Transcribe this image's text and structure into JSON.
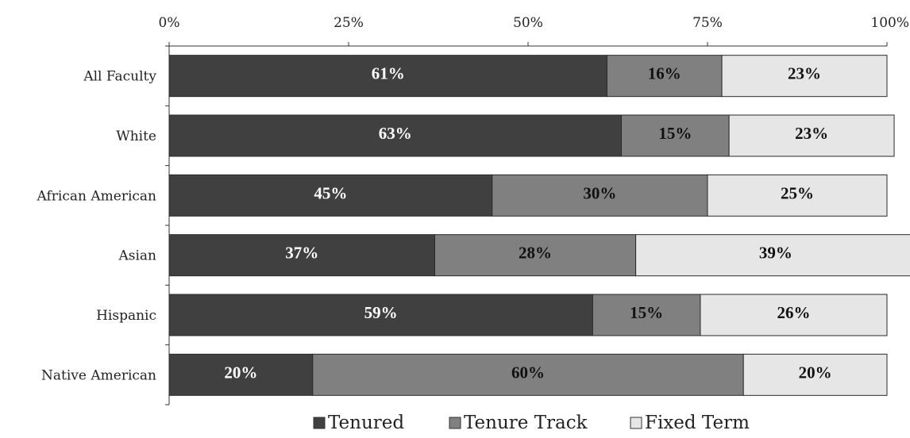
{
  "chart_data": {
    "type": "bar",
    "orientation": "horizontal",
    "stacked": true,
    "title": "",
    "xlabel": "",
    "ylabel": "",
    "xlim": [
      0,
      100
    ],
    "x_ticks": [
      "0%",
      "25%",
      "50%",
      "75%",
      "100%"
    ],
    "categories": [
      "All Faculty",
      "White",
      "African American",
      "Asian",
      "Hispanic",
      "Native American"
    ],
    "series": [
      {
        "name": "Tenured",
        "color": "#404040",
        "label_color": "#ffffff",
        "label_bold": true,
        "values": [
          61,
          63,
          45,
          37,
          59,
          20
        ],
        "labels": [
          "61%",
          "63%",
          "45%",
          "37%",
          "59%",
          "20%"
        ]
      },
      {
        "name": "Tenure Track",
        "color": "#808080",
        "label_color": "#111111",
        "label_bold": true,
        "values": [
          16,
          15,
          30,
          28,
          15,
          60
        ],
        "labels": [
          "16%",
          "15%",
          "30%",
          "28%",
          "15%",
          "60%"
        ]
      },
      {
        "name": "Fixed Term",
        "color": "#e6e6e6",
        "label_color": "#111111",
        "label_bold": false,
        "values": [
          23,
          23,
          25,
          39,
          26,
          20
        ],
        "labels": [
          "23%",
          "23%",
          "25%",
          "39%",
          "26%",
          "20%"
        ]
      }
    ],
    "legend_position": "bottom",
    "grid": false
  }
}
